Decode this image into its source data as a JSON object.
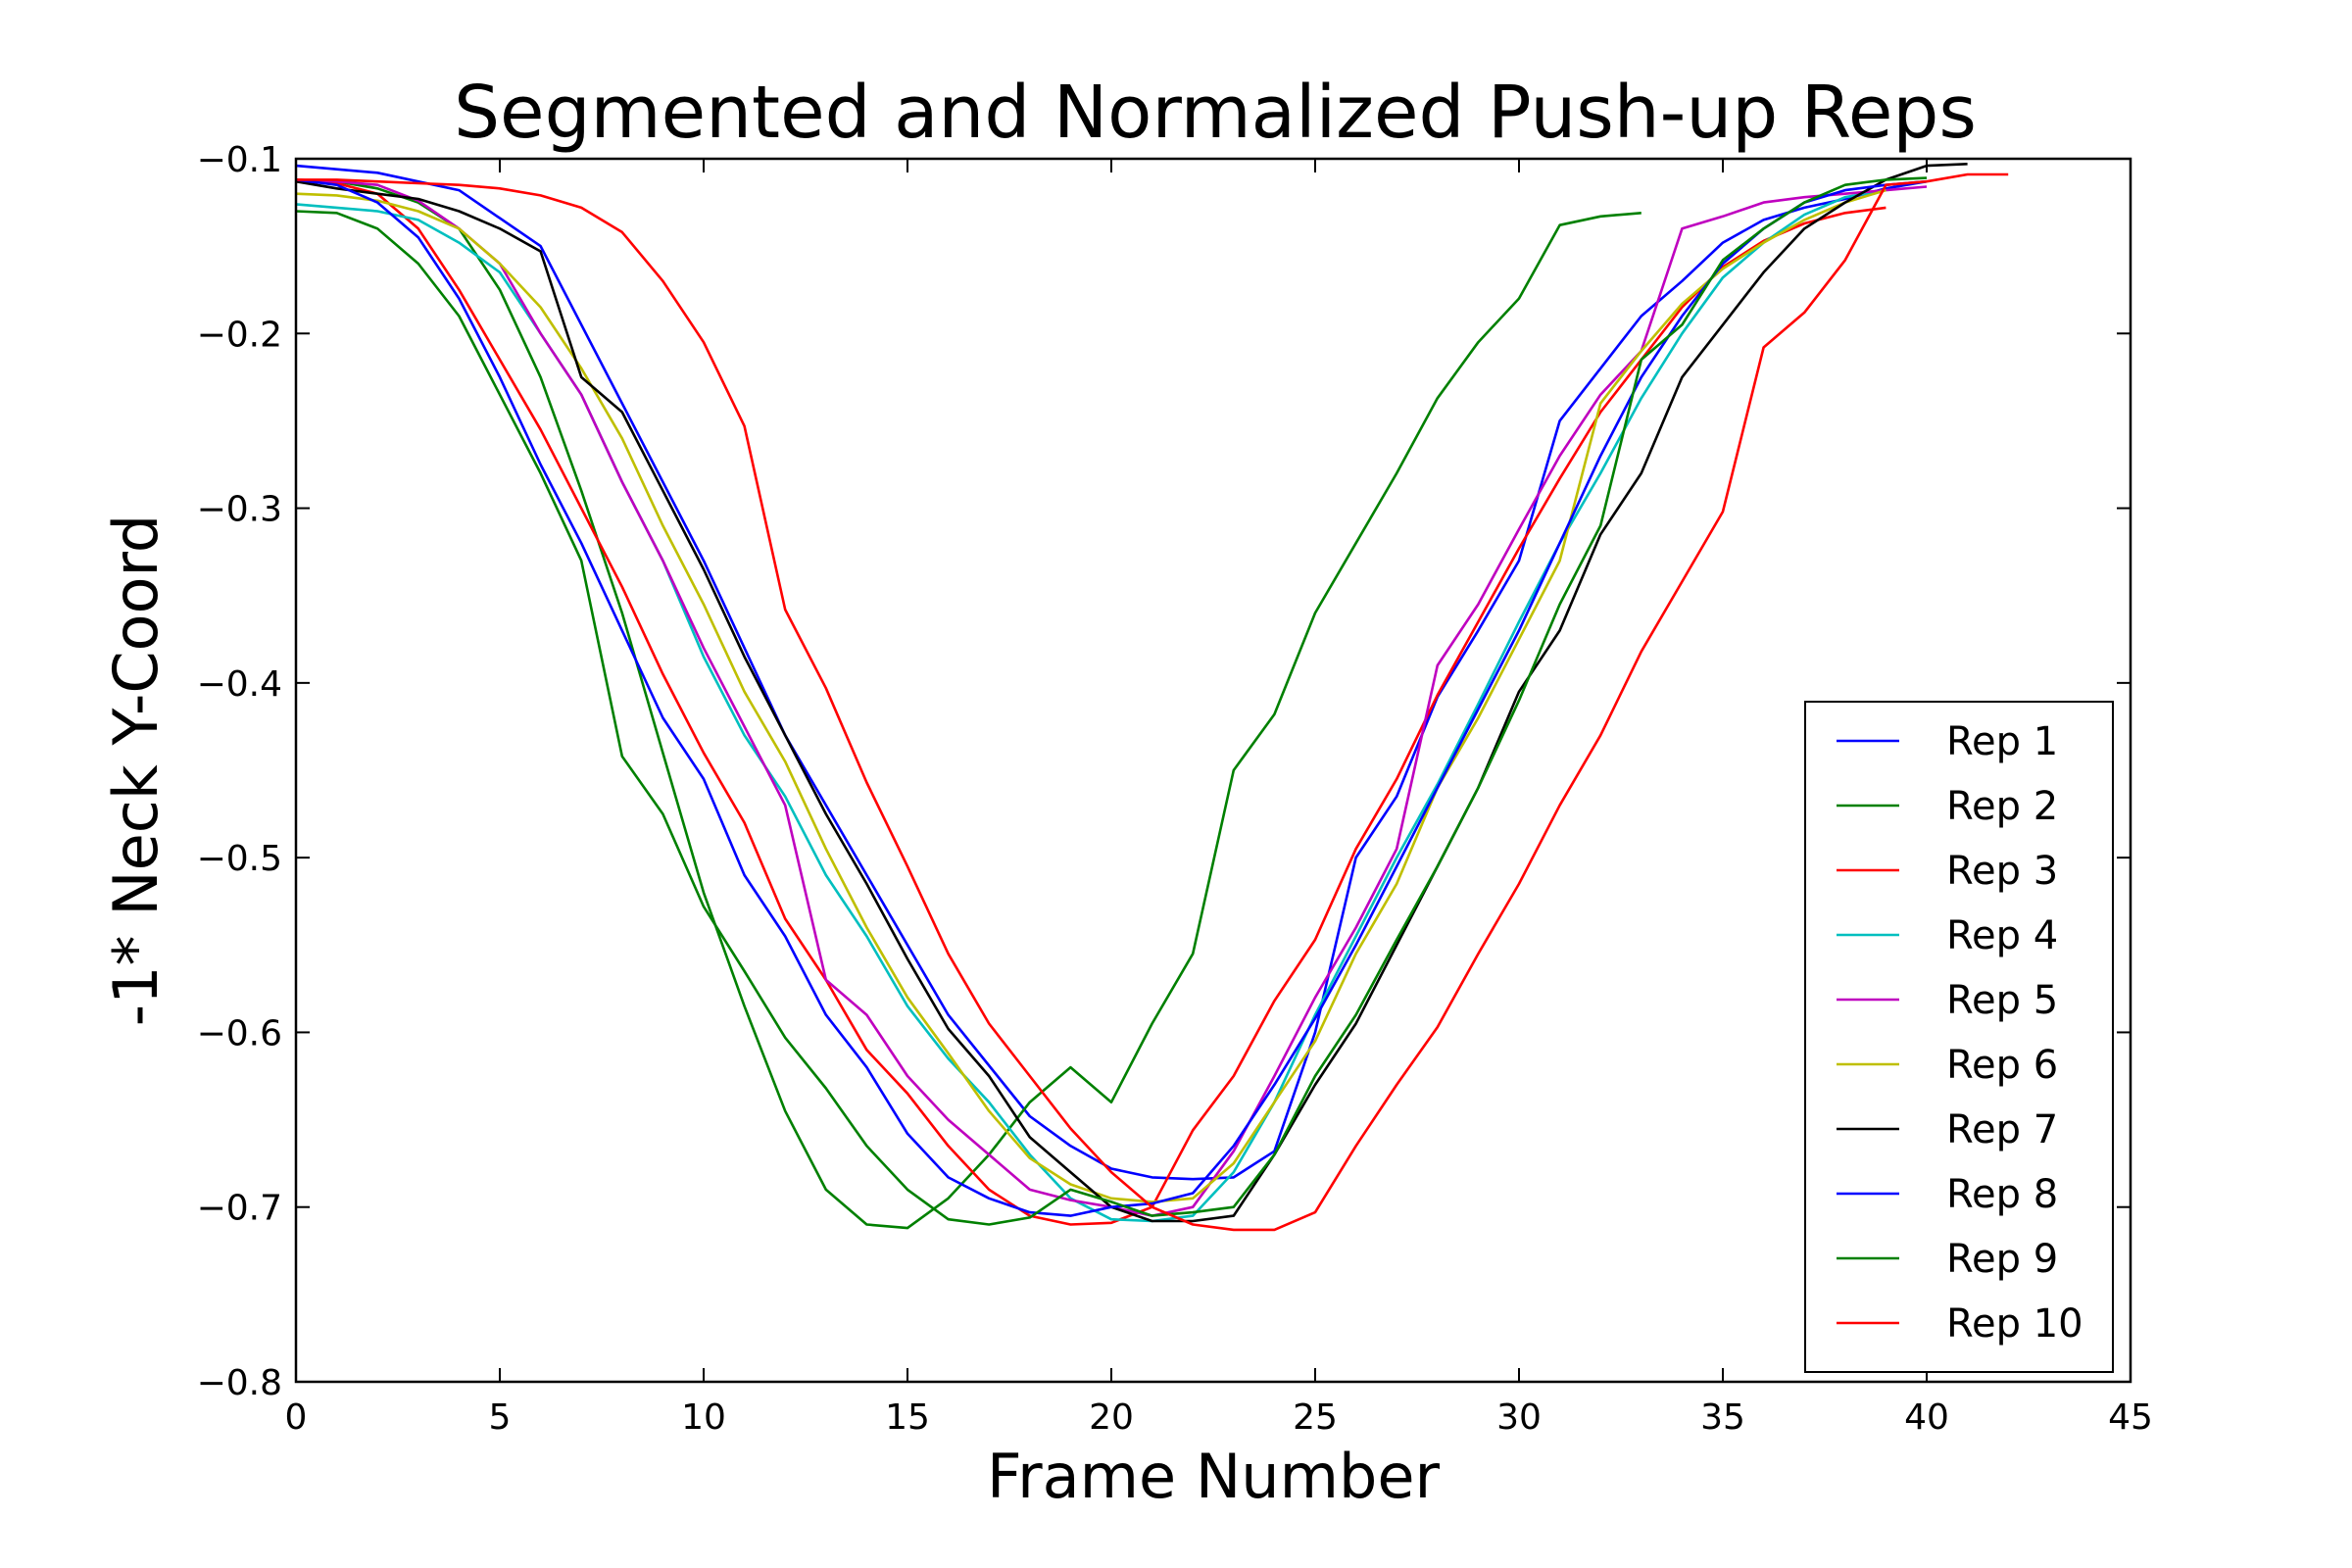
{
  "chart_data": {
    "type": "line",
    "title": "Segmented and Normalized Push-up Reps",
    "xlabel": "Frame Number",
    "ylabel": "-1* Neck Y-Coord",
    "xlim": [
      0,
      45
    ],
    "ylim": [
      -0.8,
      -0.1
    ],
    "x_ticks": [
      0,
      5,
      10,
      15,
      20,
      25,
      30,
      35,
      40,
      45
    ],
    "x_tick_labels": [
      "0",
      "5",
      "10",
      "15",
      "20",
      "25",
      "30",
      "35",
      "40",
      "45"
    ],
    "y_ticks": [
      -0.8,
      -0.7,
      -0.6,
      -0.5,
      -0.4,
      -0.3,
      -0.2,
      -0.1
    ],
    "y_tick_labels": [
      "−0.8",
      "−0.7",
      "−0.6",
      "−0.5",
      "−0.4",
      "−0.3",
      "−0.2",
      "−0.1"
    ],
    "grid": false,
    "legend_position": "bottom-right",
    "series": [
      {
        "name": "Rep 1",
        "color": "#0000ff",
        "x": [
          0,
          2,
          4,
          6,
          8,
          10,
          12,
          14,
          16,
          18,
          19,
          20,
          21,
          22,
          23,
          24,
          25,
          26,
          27,
          28,
          29,
          30,
          31,
          32,
          33,
          34,
          35,
          36,
          37,
          38,
          39,
          40
        ],
        "y": [
          -0.104,
          -0.108,
          -0.118,
          -0.15,
          -0.24,
          -0.33,
          -0.43,
          -0.51,
          -0.59,
          -0.648,
          -0.665,
          -0.678,
          -0.683,
          -0.684,
          -0.683,
          -0.668,
          -0.6,
          -0.5,
          -0.465,
          -0.408,
          -0.37,
          -0.33,
          -0.25,
          -0.22,
          -0.19,
          -0.17,
          -0.148,
          -0.135,
          -0.128,
          -0.123,
          -0.117,
          -0.113
        ]
      },
      {
        "name": "Rep 2",
        "color": "#008000",
        "x": [
          0,
          1,
          2,
          3,
          4,
          5,
          6,
          7,
          8,
          9,
          10,
          11,
          12,
          13,
          14,
          15,
          16,
          17,
          18,
          19,
          20,
          21,
          22,
          23,
          24,
          25,
          26,
          27,
          28,
          29,
          30,
          31,
          32,
          33
        ],
        "y": [
          -0.112,
          -0.113,
          -0.117,
          -0.125,
          -0.14,
          -0.175,
          -0.225,
          -0.29,
          -0.36,
          -0.44,
          -0.52,
          -0.585,
          -0.645,
          -0.69,
          -0.71,
          -0.712,
          -0.695,
          -0.67,
          -0.64,
          -0.62,
          -0.64,
          -0.595,
          -0.555,
          -0.45,
          -0.418,
          -0.36,
          -0.32,
          -0.28,
          -0.237,
          -0.205,
          -0.18,
          -0.138,
          -0.133,
          -0.131
        ]
      },
      {
        "name": "Rep 3",
        "color": "#ff0000",
        "x": [
          0,
          1,
          2,
          3,
          4,
          5,
          6,
          7,
          8,
          9,
          10,
          11,
          12,
          13,
          14,
          15,
          16,
          17,
          18,
          19,
          20,
          21,
          22,
          23,
          24,
          25,
          26,
          27,
          28,
          29,
          30,
          31,
          32,
          33,
          34,
          35,
          36,
          37,
          38,
          39
        ],
        "y": [
          -0.113,
          -0.114,
          -0.12,
          -0.14,
          -0.175,
          -0.215,
          -0.255,
          -0.3,
          -0.345,
          -0.395,
          -0.44,
          -0.48,
          -0.535,
          -0.57,
          -0.61,
          -0.635,
          -0.665,
          -0.69,
          -0.705,
          -0.71,
          -0.709,
          -0.7,
          -0.656,
          -0.625,
          -0.582,
          -0.547,
          -0.495,
          -0.455,
          -0.407,
          -0.365,
          -0.323,
          -0.283,
          -0.245,
          -0.215,
          -0.185,
          -0.162,
          -0.147,
          -0.137,
          -0.131,
          -0.128
        ]
      },
      {
        "name": "Rep 4",
        "color": "#00bfbf",
        "x": [
          0,
          1,
          2,
          3,
          4,
          5,
          6,
          7,
          8,
          9,
          10,
          11,
          12,
          13,
          14,
          15,
          16,
          17,
          18,
          19,
          20,
          21,
          22,
          23,
          24,
          25,
          26,
          27,
          28,
          29,
          30,
          31,
          32,
          33,
          34,
          35,
          36,
          37,
          38,
          39
        ],
        "y": [
          -0.126,
          -0.128,
          -0.13,
          -0.135,
          -0.148,
          -0.165,
          -0.2,
          -0.235,
          -0.285,
          -0.33,
          -0.385,
          -0.43,
          -0.465,
          -0.51,
          -0.545,
          -0.585,
          -0.615,
          -0.64,
          -0.67,
          -0.695,
          -0.707,
          -0.708,
          -0.705,
          -0.68,
          -0.64,
          -0.59,
          -0.545,
          -0.5,
          -0.458,
          -0.412,
          -0.365,
          -0.32,
          -0.28,
          -0.237,
          -0.2,
          -0.168,
          -0.148,
          -0.132,
          -0.122,
          -0.118
        ]
      },
      {
        "name": "Rep 5",
        "color": "#bf00bf",
        "x": [
          0,
          1,
          2,
          3,
          4,
          5,
          6,
          7,
          8,
          9,
          10,
          11,
          12,
          13,
          14,
          15,
          16,
          17,
          18,
          19,
          20,
          21,
          22,
          23,
          24,
          25,
          26,
          27,
          28,
          29,
          30,
          31,
          32,
          33,
          34,
          35,
          36,
          37,
          38,
          39,
          40
        ],
        "y": [
          -0.112,
          -0.113,
          -0.115,
          -0.124,
          -0.14,
          -0.16,
          -0.2,
          -0.235,
          -0.285,
          -0.33,
          -0.38,
          -0.425,
          -0.47,
          -0.57,
          -0.59,
          -0.625,
          -0.65,
          -0.67,
          -0.69,
          -0.696,
          -0.7,
          -0.705,
          -0.7,
          -0.668,
          -0.625,
          -0.58,
          -0.54,
          -0.495,
          -0.39,
          -0.355,
          -0.312,
          -0.27,
          -0.235,
          -0.21,
          -0.14,
          -0.133,
          -0.125,
          -0.122,
          -0.12,
          -0.118,
          -0.116
        ]
      },
      {
        "name": "Rep 6",
        "color": "#bfbf00",
        "x": [
          0,
          1,
          2,
          3,
          4,
          5,
          6,
          7,
          8,
          9,
          10,
          11,
          12,
          13,
          14,
          15,
          16,
          17,
          18,
          19,
          20,
          21,
          22,
          23,
          24,
          25,
          26,
          27,
          28,
          29,
          30,
          31,
          32,
          33,
          34,
          35,
          36,
          37,
          38,
          39
        ],
        "y": [
          -0.12,
          -0.121,
          -0.124,
          -0.13,
          -0.14,
          -0.16,
          -0.185,
          -0.22,
          -0.26,
          -0.31,
          -0.355,
          -0.405,
          -0.445,
          -0.495,
          -0.54,
          -0.58,
          -0.612,
          -0.645,
          -0.672,
          -0.687,
          -0.695,
          -0.697,
          -0.695,
          -0.675,
          -0.64,
          -0.605,
          -0.555,
          -0.515,
          -0.46,
          -0.42,
          -0.375,
          -0.33,
          -0.24,
          -0.21,
          -0.183,
          -0.163,
          -0.148,
          -0.135,
          -0.125,
          -0.118
        ]
      },
      {
        "name": "Rep 7",
        "color": "#000000",
        "x": [
          0,
          1,
          2,
          3,
          4,
          5,
          6,
          7,
          8,
          9,
          10,
          11,
          12,
          13,
          14,
          15,
          16,
          17,
          18,
          19,
          20,
          21,
          22,
          23,
          24,
          25,
          26,
          27,
          28,
          29,
          30,
          31,
          32,
          33,
          34,
          35,
          36,
          37,
          38,
          39,
          40,
          41
        ],
        "y": [
          -0.113,
          -0.117,
          -0.12,
          -0.123,
          -0.13,
          -0.14,
          -0.153,
          -0.225,
          -0.245,
          -0.29,
          -0.335,
          -0.385,
          -0.43,
          -0.475,
          -0.515,
          -0.558,
          -0.598,
          -0.625,
          -0.66,
          -0.68,
          -0.7,
          -0.708,
          -0.708,
          -0.705,
          -0.67,
          -0.63,
          -0.595,
          -0.55,
          -0.505,
          -0.46,
          -0.405,
          -0.37,
          -0.315,
          -0.28,
          -0.225,
          -0.195,
          -0.165,
          -0.14,
          -0.125,
          -0.112,
          -0.104,
          -0.103
        ]
      },
      {
        "name": "Rep 8",
        "color": "#0000ff",
        "x": [
          0,
          1,
          2,
          3,
          4,
          5,
          6,
          7,
          8,
          9,
          10,
          11,
          12,
          13,
          14,
          15,
          16,
          17,
          18,
          19,
          20,
          21,
          22,
          23,
          24,
          25,
          26,
          27,
          28,
          29,
          30,
          31,
          32,
          33,
          34,
          35,
          36,
          37,
          38,
          39,
          40
        ],
        "y": [
          -0.112,
          -0.115,
          -0.125,
          -0.145,
          -0.18,
          -0.225,
          -0.275,
          -0.32,
          -0.37,
          -0.42,
          -0.455,
          -0.51,
          -0.545,
          -0.59,
          -0.62,
          -0.658,
          -0.683,
          -0.695,
          -0.703,
          -0.705,
          -0.7,
          -0.698,
          -0.692,
          -0.665,
          -0.63,
          -0.592,
          -0.55,
          -0.505,
          -0.46,
          -0.415,
          -0.37,
          -0.32,
          -0.27,
          -0.225,
          -0.19,
          -0.16,
          -0.14,
          -0.125,
          -0.118,
          -0.115,
          -0.113
        ]
      },
      {
        "name": "Rep 9",
        "color": "#008000",
        "x": [
          0,
          1,
          2,
          3,
          4,
          5,
          6,
          7,
          8,
          9,
          10,
          11,
          12,
          13,
          14,
          15,
          16,
          17,
          18,
          19,
          20,
          21,
          22,
          23,
          24,
          25,
          26,
          27,
          28,
          29,
          30,
          31,
          32,
          33,
          34,
          35,
          36,
          37,
          38,
          39,
          40
        ],
        "y": [
          -0.13,
          -0.131,
          -0.14,
          -0.16,
          -0.19,
          -0.235,
          -0.28,
          -0.33,
          -0.442,
          -0.475,
          -0.528,
          -0.565,
          -0.603,
          -0.632,
          -0.665,
          -0.69,
          -0.707,
          -0.71,
          -0.706,
          -0.69,
          -0.697,
          -0.705,
          -0.703,
          -0.7,
          -0.67,
          -0.625,
          -0.59,
          -0.547,
          -0.505,
          -0.46,
          -0.41,
          -0.355,
          -0.31,
          -0.215,
          -0.195,
          -0.158,
          -0.14,
          -0.125,
          -0.115,
          -0.112,
          -0.111
        ]
      },
      {
        "name": "Rep 10",
        "color": "#ff0000",
        "x": [
          0,
          1,
          2,
          3,
          4,
          5,
          6,
          7,
          8,
          9,
          10,
          11,
          12,
          13,
          14,
          15,
          16,
          17,
          18,
          19,
          20,
          21,
          22,
          23,
          24,
          25,
          26,
          27,
          28,
          29,
          30,
          31,
          32,
          33,
          34,
          35,
          36,
          37,
          38,
          39,
          40,
          41,
          42
        ],
        "y": [
          -0.112,
          -0.112,
          -0.113,
          -0.114,
          -0.115,
          -0.117,
          -0.121,
          -0.128,
          -0.142,
          -0.17,
          -0.205,
          -0.253,
          -0.358,
          -0.403,
          -0.457,
          -0.505,
          -0.555,
          -0.595,
          -0.625,
          -0.655,
          -0.68,
          -0.7,
          -0.71,
          -0.713,
          -0.713,
          -0.703,
          -0.665,
          -0.63,
          -0.597,
          -0.555,
          -0.515,
          -0.47,
          -0.43,
          -0.382,
          -0.342,
          -0.302,
          -0.208,
          -0.188,
          -0.158,
          -0.115,
          -0.113,
          -0.109,
          -0.109
        ]
      }
    ]
  }
}
